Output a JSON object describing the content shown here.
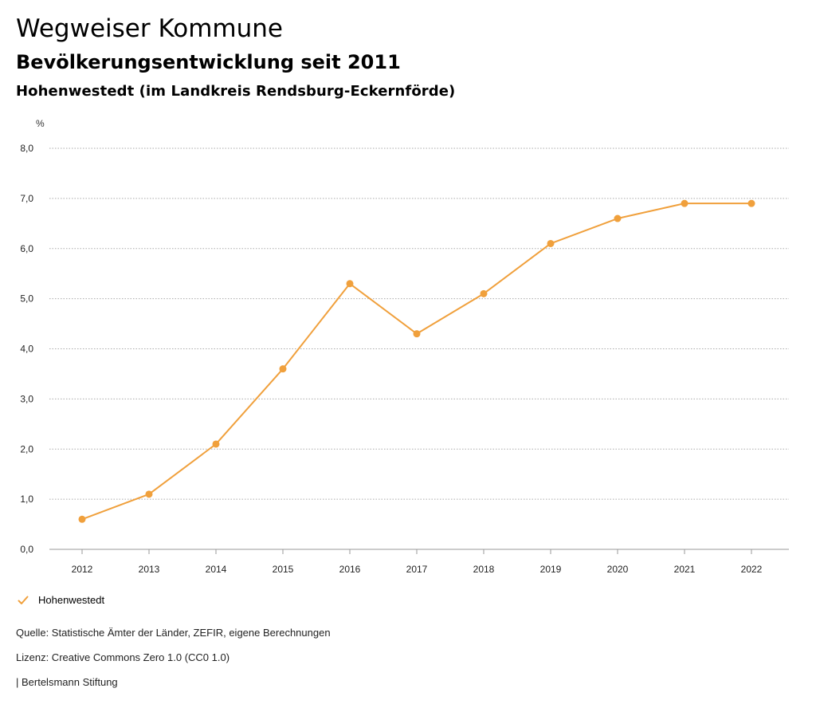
{
  "header": {
    "title": "Wegweiser Kommune",
    "subtitle": "Bevölkerungsentwicklung seit 2011",
    "region": "Hohenwestedt (im Landkreis Rendsburg-Eckernförde)"
  },
  "chart_data": {
    "type": "line",
    "ylabel": "%",
    "xlabel": "",
    "x": [
      "2012",
      "2013",
      "2014",
      "2015",
      "2016",
      "2017",
      "2018",
      "2019",
      "2020",
      "2021",
      "2022"
    ],
    "series": [
      {
        "name": "Hohenwestedt",
        "color": "#f0a03c",
        "values": [
          0.6,
          1.1,
          2.1,
          3.6,
          5.3,
          4.3,
          5.1,
          6.1,
          6.6,
          6.9,
          6.9
        ]
      }
    ],
    "ylim": [
      0,
      8
    ],
    "yticks": [
      "0,0",
      "1,0",
      "2,0",
      "3,0",
      "4,0",
      "5,0",
      "6,0",
      "7,0",
      "8,0"
    ],
    "grid": true,
    "legend_position": "bottom-left"
  },
  "legend": {
    "icon": "check-icon",
    "label": "Hohenwestedt"
  },
  "footer": {
    "source": "Quelle: Statistische Ämter der Länder, ZEFIR, eigene Berechnungen",
    "license": "Lizenz: Creative Commons Zero 1.0 (CC0 1.0)",
    "publisher": "| Bertelsmann Stiftung"
  }
}
